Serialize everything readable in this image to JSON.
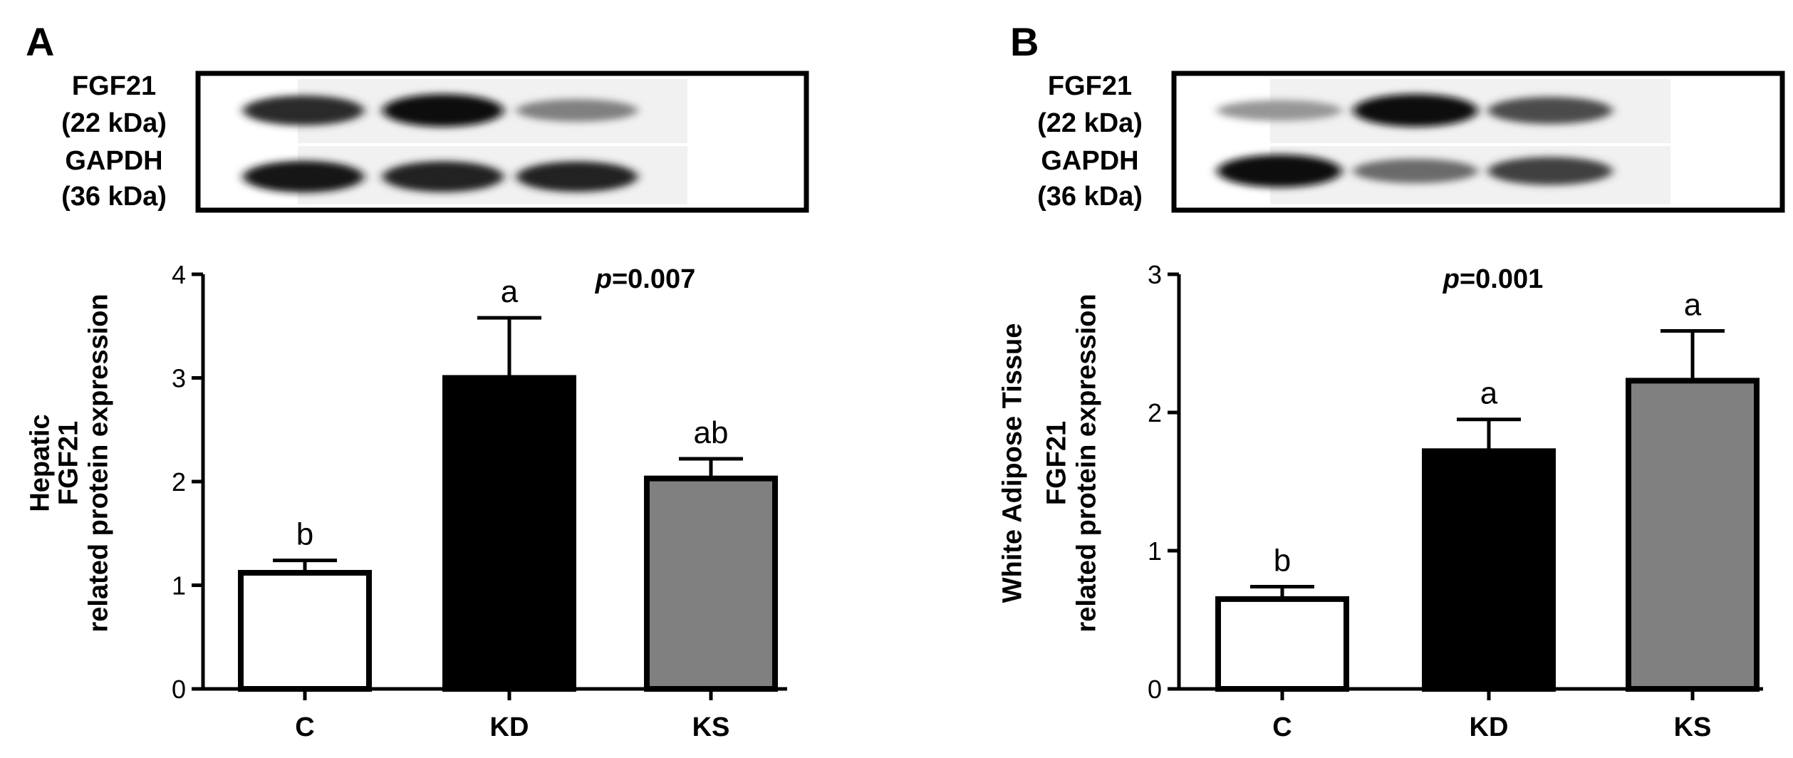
{
  "chart_data": [
    {
      "type": "bar",
      "panel_label": "A",
      "ylabel": [
        "Hepatic",
        "FGF21",
        "related protein expression"
      ],
      "categories": [
        "C",
        "KD",
        "KS"
      ],
      "values": [
        1.12,
        3.0,
        2.03
      ],
      "errors": [
        0.12,
        0.58,
        0.19
      ],
      "significance_letters": [
        "b",
        "a",
        "ab"
      ],
      "bar_colors": [
        "#ffffff",
        "#000000",
        "#808080"
      ],
      "yticks": [
        "0",
        "1",
        "2",
        "3",
        "4"
      ],
      "ylim": [
        0,
        4
      ],
      "p_value": "=0.007",
      "p_symbol": "p",
      "blot": {
        "labels": [
          [
            "FGF21",
            "(22 kDa)"
          ],
          [
            "GAPDH",
            "(36 kDa)"
          ]
        ],
        "fgf21_intensity": [
          0.85,
          1.0,
          0.45
        ],
        "gapdh_intensity": [
          0.95,
          0.9,
          0.88
        ]
      }
    },
    {
      "type": "bar",
      "panel_label": "B",
      "ylabel": [
        "White Adipose Tissue",
        "FGF21",
        "related protein expression"
      ],
      "categories": [
        "C",
        "KD",
        "KS"
      ],
      "values": [
        0.65,
        1.72,
        2.23
      ],
      "errors": [
        0.09,
        0.23,
        0.36
      ],
      "significance_letters": [
        "b",
        "a",
        "a"
      ],
      "bar_colors": [
        "#ffffff",
        "#000000",
        "#808080"
      ],
      "yticks": [
        "0",
        "1",
        "2",
        "3"
      ],
      "ylim": [
        0,
        3
      ],
      "p_value": "=0.001",
      "p_symbol": "p",
      "blot": {
        "labels": [
          [
            "FGF21",
            "(22 kDa)"
          ],
          [
            "GAPDH",
            "(36 kDa)"
          ]
        ],
        "fgf21_intensity": [
          0.35,
          1.0,
          0.7
        ],
        "gapdh_intensity": [
          1.0,
          0.55,
          0.75
        ]
      }
    }
  ]
}
